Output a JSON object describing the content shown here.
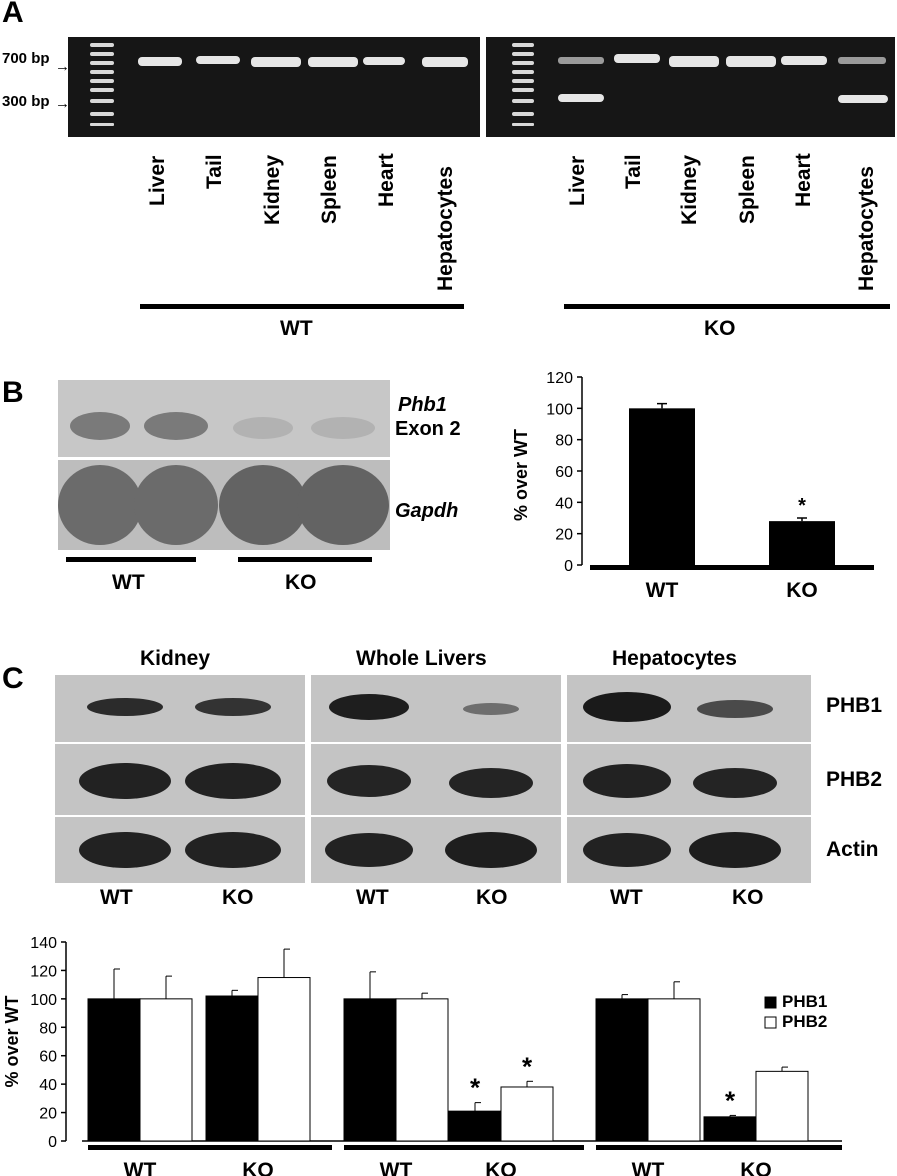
{
  "panel_labels": {
    "a": "A",
    "b": "B",
    "c": "C"
  },
  "panel_a": {
    "markers": [
      "700 bp",
      "300 bp"
    ],
    "lanes": [
      "Liver",
      "Tail",
      "Kidney",
      "Spleen",
      "Heart",
      "Hepatocytes"
    ],
    "groups": [
      "WT",
      "KO"
    ]
  },
  "panel_b": {
    "probe_top_line1": "Phb1",
    "probe_top_line2": "Exon 2",
    "probe_bottom": "Gapdh",
    "groups": [
      "WT",
      "KO"
    ]
  },
  "panel_c": {
    "tissues": [
      "Kidney",
      "Whole Livers",
      "Hepatocytes"
    ],
    "proteins": [
      "PHB1",
      "PHB2",
      "Actin"
    ],
    "genotypes": [
      "WT",
      "KO"
    ]
  },
  "chart_data": [
    {
      "type": "bar",
      "categories": [
        "WT",
        "KO"
      ],
      "values": [
        100,
        28
      ],
      "errors": [
        3,
        2
      ],
      "significant": [
        false,
        true
      ],
      "ylabel": "% over WT",
      "ylim": [
        0,
        120
      ],
      "yticks": [
        0,
        20,
        40,
        60,
        80,
        100,
        120
      ],
      "legend": "none",
      "grid": false
    },
    {
      "type": "bar",
      "groups": [
        "Kidney",
        "Whole Livers",
        "Hepatocytes"
      ],
      "categories": [
        "WT",
        "KO",
        "WT",
        "KO",
        "WT",
        "KO"
      ],
      "series": [
        {
          "name": "PHB1",
          "color": "#000000",
          "values": [
            100,
            102,
            100,
            21,
            100,
            17
          ],
          "errors": [
            21,
            4,
            19,
            6,
            3,
            1
          ],
          "significant": [
            false,
            false,
            false,
            true,
            false,
            true
          ]
        },
        {
          "name": "PHB2",
          "color": "#ffffff",
          "values": [
            100,
            115,
            100,
            38,
            100,
            49
          ],
          "errors": [
            16,
            20,
            4,
            4,
            12,
            3
          ],
          "significant": [
            false,
            false,
            false,
            true,
            false,
            false
          ]
        }
      ],
      "ylabel": "% over WT",
      "ylim": [
        0,
        140
      ],
      "yticks": [
        0,
        20,
        40,
        60,
        80,
        100,
        120,
        140
      ],
      "legend": "right",
      "grid": false,
      "sig_marker": "*"
    }
  ]
}
